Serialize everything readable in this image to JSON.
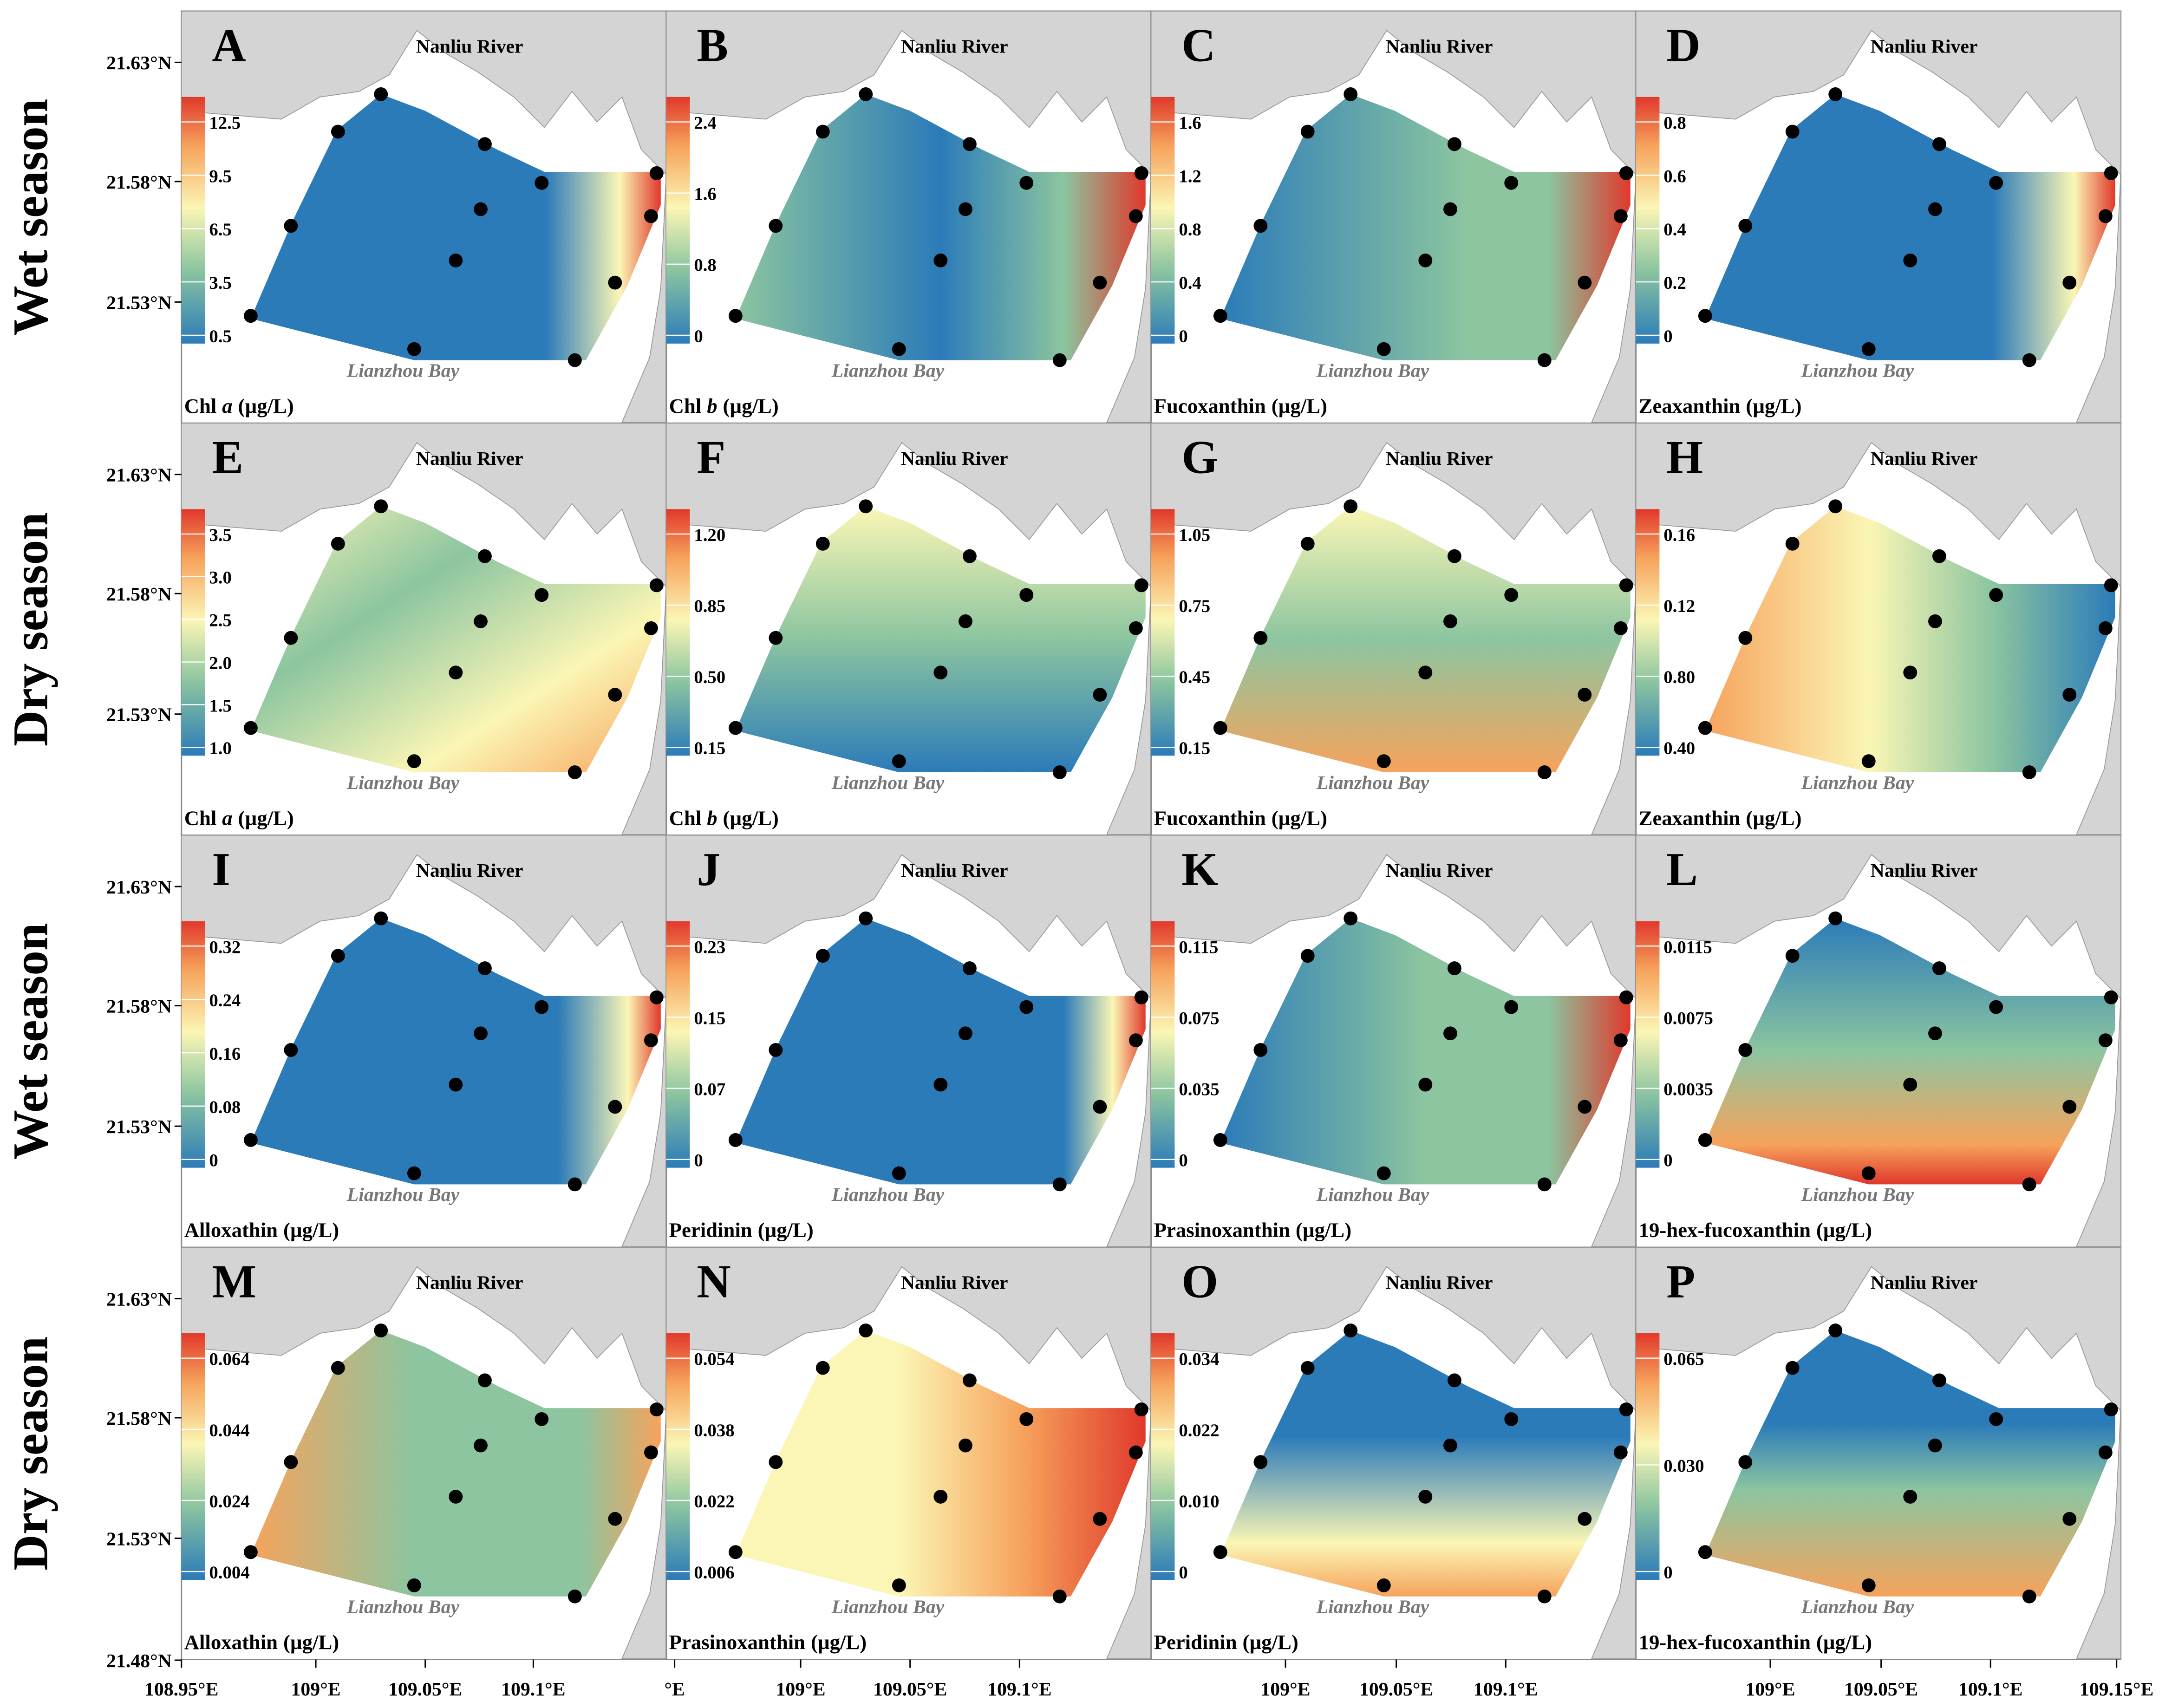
{
  "rows": [
    {
      "label": "Wet season",
      "latitudes": [
        "21.63°N",
        "21.58°N",
        "21.53°N"
      ]
    },
    {
      "label": "Dry season",
      "latitudes": [
        "21.63°N",
        "21.58°N",
        "21.53°N"
      ]
    },
    {
      "label": "Wet season",
      "latitudes": [
        "21.63°N",
        "21.58°N",
        "21.53°N"
      ]
    },
    {
      "label": "Dry season",
      "latitudes": [
        "21.63°N",
        "21.58°N",
        "21.53°N",
        "21.48°N"
      ]
    }
  ],
  "longitude_labels": [
    [
      "108.95°E",
      "109°E",
      "109.05°E",
      "109.1°E"
    ],
    [
      "°E",
      "109°E",
      "109.05°E",
      "109.1°E"
    ],
    [
      "109°E",
      "109.05°E",
      "109.1°E"
    ],
    [
      "109°E",
      "109.05°E",
      "109.1°E",
      "109.15°E"
    ]
  ],
  "panels": [
    {
      "letter": "A",
      "river": "Nanliu River",
      "bay": "Lianzhou Bay",
      "caption": {
        "name": "Chl",
        "italic": "a",
        "unit": "(µg/L)"
      },
      "colorbar_ticks": [
        "0.5",
        "3.5",
        "6.5",
        "9.5",
        "12.5"
      ]
    },
    {
      "letter": "B",
      "river": "Nanliu River",
      "bay": "Lianzhou Bay",
      "caption": {
        "name": "Chl",
        "italic": "b",
        "unit": "(µg/L)"
      },
      "colorbar_ticks": [
        "0",
        "0.8",
        "1.6",
        "2.4"
      ]
    },
    {
      "letter": "C",
      "river": "Nanliu River",
      "bay": "Lianzhou Bay",
      "caption": {
        "name": "Fucoxanthin",
        "unit": "(µg/L)"
      },
      "colorbar_ticks": [
        "0",
        "0.4",
        "0.8",
        "1.2",
        "1.6"
      ]
    },
    {
      "letter": "D",
      "river": "Nanliu River",
      "bay": "Lianzhou Bay",
      "caption": {
        "name": "Zeaxanthin",
        "unit": "(µg/L)"
      },
      "colorbar_ticks": [
        "0",
        "0.2",
        "0.4",
        "0.6",
        "0.8"
      ]
    },
    {
      "letter": "E",
      "river": "Nanliu River",
      "bay": "Lianzhou Bay",
      "caption": {
        "name": "Chl",
        "italic": "a",
        "unit": "(µg/L)"
      },
      "colorbar_ticks": [
        "1.0",
        "1.5",
        "2.0",
        "2.5",
        "3.0",
        "3.5"
      ]
    },
    {
      "letter": "F",
      "river": "Nanliu River",
      "bay": "Lianzhou Bay",
      "caption": {
        "name": "Chl",
        "italic": "b",
        "unit": "(µg/L)"
      },
      "colorbar_ticks": [
        "0.15",
        "0.50",
        "0.85",
        "1.20"
      ]
    },
    {
      "letter": "G",
      "river": "Nanliu River",
      "bay": "Lianzhou Bay",
      "caption": {
        "name": "Fucoxanthin",
        "unit": "(µg/L)"
      },
      "colorbar_ticks": [
        "0.15",
        "0.45",
        "0.75",
        "1.05"
      ]
    },
    {
      "letter": "H",
      "river": "Nanliu River",
      "bay": "Lianzhou Bay",
      "caption": {
        "name": "Zeaxanthin",
        "unit": "(µg/L)"
      },
      "colorbar_ticks": [
        "0.40",
        "0.80",
        "0.12",
        "0.16"
      ]
    },
    {
      "letter": "I",
      "river": "Nanliu River",
      "bay": "Lianzhou Bay",
      "caption": {
        "name": "Alloxathin",
        "unit": "(µg/L)"
      },
      "colorbar_ticks": [
        "0",
        "0.08",
        "0.16",
        "0.24",
        "0.32"
      ]
    },
    {
      "letter": "J",
      "river": "Nanliu River",
      "bay": "Lianzhou Bay",
      "caption": {
        "name": "Peridinin",
        "unit": "(µg/L)"
      },
      "colorbar_ticks": [
        "0",
        "0.07",
        "0.15",
        "0.23"
      ]
    },
    {
      "letter": "K",
      "river": "Nanliu River",
      "bay": "Lianzhou Bay",
      "caption": {
        "name": "Prasinoxanthin",
        "unit": "(µg/L)"
      },
      "colorbar_ticks": [
        "0",
        "0.035",
        "0.075",
        "0.115"
      ]
    },
    {
      "letter": "L",
      "river": "Nanliu River",
      "bay": "Lianzhou Bay",
      "caption": {
        "name": "19-hex-fucoxanthin",
        "unit": "(µg/L)"
      },
      "colorbar_ticks": [
        "0",
        "0.0035",
        "0.0075",
        "0.0115"
      ]
    },
    {
      "letter": "M",
      "river": "Nanliu River",
      "bay": "Lianzhou Bay",
      "caption": {
        "name": "Alloxathin",
        "unit": "(µg/L)"
      },
      "colorbar_ticks": [
        "0.004",
        "0.024",
        "0.044",
        "0.064"
      ]
    },
    {
      "letter": "N",
      "river": "Nanliu River",
      "bay": "Lianzhou Bay",
      "caption": {
        "name": "Prasinoxanthin",
        "unit": "(µg/L)"
      },
      "colorbar_ticks": [
        "0.006",
        "0.022",
        "0.038",
        "0.054"
      ]
    },
    {
      "letter": "O",
      "river": "Nanliu River",
      "bay": "Lianzhou Bay",
      "caption": {
        "name": "Peridinin",
        "unit": "(µg/L)"
      },
      "colorbar_ticks": [
        "0",
        "0.010",
        "0.022",
        "0.034"
      ]
    },
    {
      "letter": "P",
      "river": "Nanliu River",
      "bay": "Lianzhou Bay",
      "caption": {
        "name": "19-hex-fucoxanthin",
        "unit": "(µg/L)"
      },
      "colorbar_ticks": [
        "0",
        "0.030",
        "0.065"
      ]
    }
  ]
}
